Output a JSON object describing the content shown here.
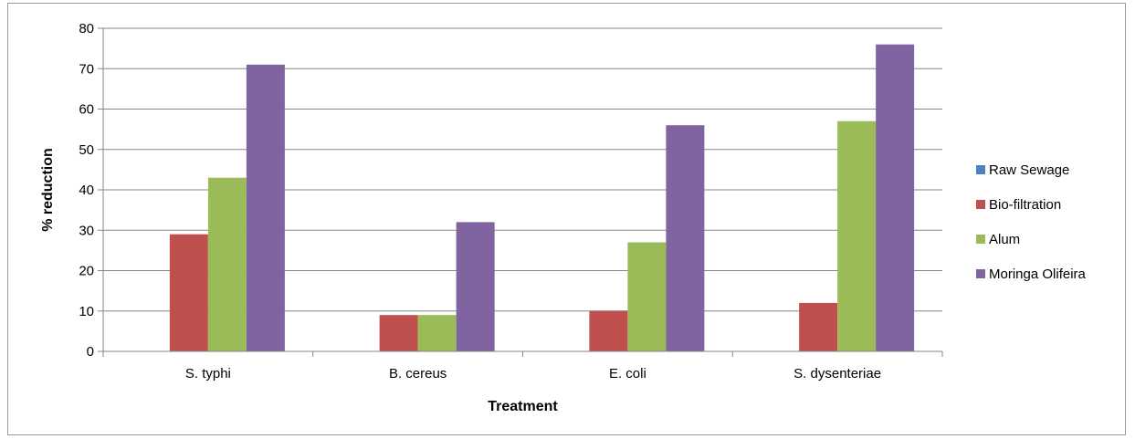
{
  "chart_data": {
    "type": "bar",
    "title": "",
    "xlabel": "Treatment",
    "ylabel": "% reduction",
    "ylim": [
      0,
      80
    ],
    "ytick_step": 10,
    "categories": [
      "S. typhi",
      "B. cereus",
      "E. coli",
      "S. dysenteriae"
    ],
    "series": [
      {
        "name": "Raw Sewage",
        "color": "#4f81bd",
        "values": [
          0,
          0,
          0,
          0
        ]
      },
      {
        "name": "Bio-filtration",
        "color": "#c0504d",
        "values": [
          29,
          9,
          10,
          12
        ]
      },
      {
        "name": "Alum",
        "color": "#9bbb59",
        "values": [
          43,
          9,
          27,
          57
        ]
      },
      {
        "name": "Moringa Olifeira",
        "color": "#8064a2",
        "values": [
          71,
          32,
          56,
          76
        ]
      }
    ],
    "grid": true,
    "legend": "right"
  }
}
